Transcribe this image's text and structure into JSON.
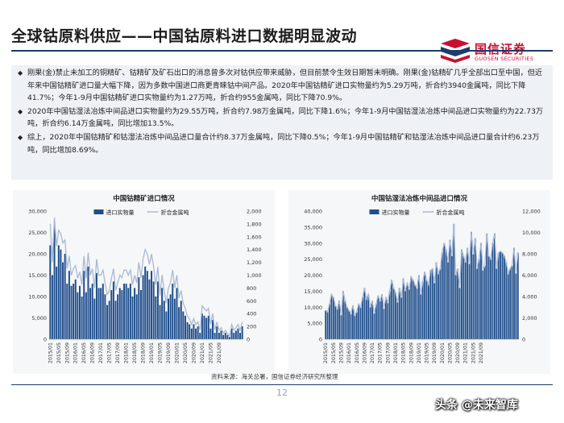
{
  "page": {
    "title": "全球钴原料供应——中国钴原料进口数据明显波动",
    "logo_cn": "国信证券",
    "logo_en": "GUOSEN SECURITIES",
    "bullets": [
      "刚果(金)禁止未加工的铜精矿、钴精矿及矿石出口的消息曾多次对钴供应带来威胁，但目前禁令生效日期暂未明确。刚果(金)钴精矿几乎全部出口至中国，但近年来中国钴精矿进口量大幅下降，因为多数中国进口商更青睐钴中间产品。2020年中国钴精矿进口实物量约为5.29万吨，折合约3940金属吨，同比下降41.7%；今年1-9月中国钴精矿进口实物量约为1.27万吨，折合约955金属吨，同比下降70.9%。",
      "2020年中国钴湿法冶炼中间品进口实物量约为29.55万吨，折合约7.98万金属吨，同比下降1.6%；今年1-9月中国钴湿法冶炼中间品进口实物量约为22.73万吨，折合约6.14万金属吨，同比增加13.5%。",
      "综上，2020年中国钴精矿和钴湿法冶炼中间品进口量合计约8.37万金属吨，同比下降0.5%；今年1-9月中国钴精矿和钴湿法冶炼中间品进口量合计约6.23万吨，同比增加8.69%。"
    ],
    "source": "资料来源：海关总署，国信证券经济研究所整理",
    "page_number": "12",
    "watermark": "头条 @未来智库"
  },
  "colors": {
    "brand_red": "#c8102e",
    "navy": "#1b3c6e",
    "bar": "#1f4e8c",
    "line": "#a9b9d3"
  },
  "chart_data": [
    {
      "type": "bar",
      "title": "中国钴精矿进口情况",
      "legend": "top-center",
      "series": [
        {
          "name": "进口实物量",
          "type": "bar",
          "axis": "left",
          "values": [
            22000,
            15000,
            27000,
            17000,
            22000,
            21000,
            18000,
            20000,
            13000,
            16000,
            12500,
            13000,
            14000,
            11000,
            12500,
            10000,
            16000,
            11000,
            17000,
            12000,
            13000,
            9500,
            15500,
            12000,
            12000,
            13000,
            10500,
            8000,
            9000,
            11500,
            13500,
            9000,
            10500,
            12000,
            11500,
            13000,
            13000,
            12000,
            13000,
            10000,
            12000,
            10500,
            14500,
            11500,
            15000,
            17000,
            16000,
            14000,
            16000,
            13500,
            10000,
            13500,
            8000,
            12000,
            9000,
            6500,
            9500,
            10500,
            13000,
            9500,
            12000,
            7500,
            9000,
            6500,
            5500,
            4000,
            3500,
            2500,
            3500,
            2500,
            3000,
            1500,
            6000,
            5500,
            5000,
            5500,
            2500,
            4500,
            1500,
            3000,
            1500,
            2000,
            1000,
            1500,
            1000,
            500,
            2500,
            1500,
            2000,
            2500,
            1500,
            3000
          ]
        },
        {
          "name": "折合金属吨",
          "type": "line",
          "axis": "right",
          "values": [
            1800,
            1200,
            1900,
            1450,
            1700,
            1650,
            1500,
            1550,
            1100,
            1300,
            1000,
            1100,
            1150,
            950,
            1050,
            850,
            1300,
            950,
            1350,
            1000,
            1100,
            800,
            1250,
            1000,
            1000,
            1080,
            880,
            700,
            750,
            950,
            1100,
            760,
            880,
            1000,
            960,
            1080,
            1080,
            1000,
            1080,
            850,
            1000,
            880,
            1200,
            960,
            1250,
            1400,
            1330,
            1170,
            1330,
            1130,
            850,
            1130,
            680,
            1000,
            760,
            560,
            800,
            880,
            1080,
            800,
            1000,
            640,
            760,
            560,
            480,
            360,
            320,
            230,
            320,
            230,
            270,
            140,
            520,
            480,
            440,
            480,
            230,
            400,
            140,
            270,
            140,
            180,
            90,
            140,
            90,
            50,
            230,
            140,
            180,
            230,
            140,
            270
          ]
        }
      ],
      "x_tick_labels": [
        "2015/01",
        "2015/05",
        "2015/09",
        "2016/01",
        "2016/05",
        "2016/09",
        "2017/01",
        "2017/05",
        "2017/09",
        "2018/01",
        "2018/05",
        "2018/09",
        "2019/01",
        "2019/05",
        "2019/09",
        "2020/01",
        "2020/05",
        "2020/09",
        "2021/01",
        "2021/05",
        "2021/09"
      ],
      "y_left": {
        "min": 0,
        "max": 30000,
        "ticks": [
          "0",
          "5,000",
          "10,000",
          "15,000",
          "20,000",
          "25,000",
          "30,000"
        ]
      },
      "y_right": {
        "min": 0,
        "max": 2000,
        "ticks": [
          "0",
          "200",
          "400",
          "600",
          "800",
          "1,000",
          "1,200",
          "1,400",
          "1,600",
          "1,800",
          "2,000"
        ]
      }
    },
    {
      "type": "bar",
      "title": "中国钴湿法冶炼中间品进口情况",
      "legend": "top-center",
      "series": [
        {
          "name": "进口实物量",
          "type": "bar",
          "axis": "left",
          "values": [
            9000,
            8500,
            11000,
            14000,
            13000,
            10500,
            9500,
            12000,
            7500,
            15000,
            12000,
            10000,
            9000,
            8000,
            10500,
            7500,
            8500,
            11000,
            10000,
            13000,
            16000,
            12500,
            14000,
            10000,
            12000,
            8000,
            11000,
            13500,
            12000,
            14000,
            9500,
            13000,
            11500,
            15000,
            18500,
            16000,
            14500,
            11500,
            16000,
            13000,
            19000,
            15000,
            17500,
            15500,
            19500,
            18500,
            17000,
            16000,
            20000,
            14000,
            18000,
            21000,
            18500,
            17000,
            21500,
            22000,
            17500,
            24000,
            20500,
            22000,
            27000,
            30000,
            28000,
            24000,
            31000,
            26000,
            36000,
            20000,
            22000,
            16000,
            28000,
            26000,
            24000,
            28500,
            23500,
            33500,
            26500,
            31500,
            22000,
            25000,
            30000,
            21500,
            23000,
            33000,
            26000,
            25000,
            30000,
            33000,
            22000,
            27000,
            27500,
            27000,
            26000,
            24000,
            20500,
            22000,
            23000,
            28500,
            20500,
            27000
          ]
        },
        {
          "name": "折合金属吨",
          "type": "line",
          "axis": "right",
          "values": [
            2700,
            2550,
            3300,
            4200,
            3900,
            3150,
            2850,
            3600,
            2250,
            4500,
            3600,
            3000,
            2700,
            2400,
            3150,
            2250,
            2550,
            3300,
            3000,
            3900,
            4800,
            3750,
            4200,
            3000,
            3600,
            2400,
            3300,
            4050,
            3600,
            4200,
            2850,
            3900,
            3450,
            4500,
            5550,
            4800,
            4350,
            3450,
            4800,
            3900,
            5700,
            4500,
            5250,
            4650,
            5850,
            5550,
            5100,
            4800,
            6000,
            4200,
            5400,
            6300,
            5550,
            5100,
            6450,
            6600,
            5250,
            7200,
            6150,
            6600,
            8100,
            9000,
            8400,
            7200,
            9300,
            7800,
            10800,
            6000,
            6600,
            4800,
            8400,
            7800,
            7200,
            8550,
            7050,
            10050,
            7950,
            9450,
            6600,
            7500,
            9000,
            6450,
            6900,
            9900,
            7800,
            7500,
            9000,
            9900,
            6600,
            8100,
            8250,
            8100,
            7800,
            7200,
            6150,
            6600,
            6900,
            8550,
            6150,
            8100
          ]
        }
      ],
      "x_tick_labels": [
        "2015/01",
        "2015/05",
        "2015/09",
        "2016/01",
        "2016/05",
        "2016/09",
        "2017/01",
        "2017/05",
        "2017/09",
        "2018/01",
        "2018/05",
        "2018/09",
        "2019/01",
        "2019/05",
        "2019/09",
        "2020/01",
        "2020/05",
        "2020/09",
        "2021/01",
        "2021/05",
        "2021/09"
      ],
      "y_left": {
        "min": 0,
        "max": 40000,
        "ticks": [
          "0",
          "5,000",
          "10,000",
          "15,000",
          "20,000",
          "25,000",
          "30,000",
          "35,000",
          "40,000"
        ]
      },
      "y_right": {
        "min": 0,
        "max": 12000,
        "ticks": [
          "0",
          "2,000",
          "4,000",
          "6,000",
          "8,000",
          "10,000",
          "12,000"
        ]
      }
    }
  ]
}
